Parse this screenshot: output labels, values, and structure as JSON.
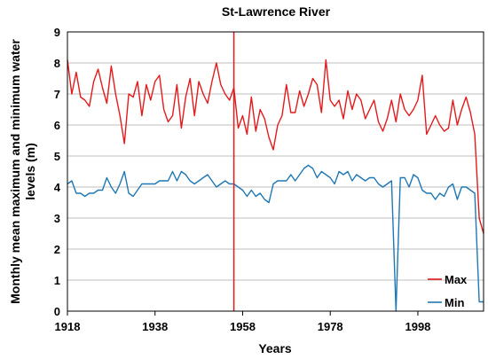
{
  "chart_data": {
    "type": "line",
    "title": "St-Lawrence River",
    "xlabel": "Years",
    "ylabel": "Monthly mean maximum and minimum water levels (m)",
    "xlim": [
      1918,
      2013
    ],
    "ylim": [
      0,
      9
    ],
    "xticks": [
      1918,
      1938,
      1958,
      1978,
      1998
    ],
    "yticks": [
      0,
      1,
      2,
      3,
      4,
      5,
      6,
      7,
      8,
      9
    ],
    "grid": "horizontal",
    "legend_position": "bottom-right",
    "vertical_marker_year": 1956,
    "series": [
      {
        "name": "Max",
        "color": "#e41a1c",
        "x": [
          1918,
          1919,
          1920,
          1921,
          1922,
          1923,
          1924,
          1925,
          1926,
          1927,
          1928,
          1929,
          1930,
          1931,
          1932,
          1933,
          1934,
          1935,
          1936,
          1937,
          1938,
          1939,
          1940,
          1941,
          1942,
          1943,
          1944,
          1945,
          1946,
          1947,
          1948,
          1949,
          1950,
          1951,
          1952,
          1953,
          1954,
          1955,
          1956,
          1957,
          1958,
          1959,
          1960,
          1961,
          1962,
          1963,
          1964,
          1965,
          1966,
          1967,
          1968,
          1969,
          1970,
          1971,
          1972,
          1973,
          1974,
          1975,
          1976,
          1977,
          1978,
          1979,
          1980,
          1981,
          1982,
          1983,
          1984,
          1985,
          1986,
          1987,
          1988,
          1989,
          1990,
          1991,
          1992,
          1993,
          1994,
          1995,
          1996,
          1997,
          1998,
          1999,
          2000,
          2001,
          2002,
          2003,
          2004,
          2005,
          2006,
          2007,
          2008,
          2009,
          2010,
          2011,
          2012,
          2013
        ],
        "values": [
          8.1,
          7.0,
          7.7,
          6.9,
          6.8,
          6.6,
          7.4,
          7.8,
          7.2,
          6.7,
          7.9,
          7.0,
          6.3,
          5.4,
          7.0,
          6.9,
          7.4,
          6.3,
          7.3,
          6.8,
          7.4,
          7.6,
          6.5,
          6.1,
          6.3,
          7.3,
          5.9,
          6.9,
          7.5,
          6.3,
          7.4,
          7.0,
          6.7,
          7.4,
          8.0,
          7.3,
          7.0,
          6.8,
          7.2,
          5.9,
          6.3,
          5.7,
          6.9,
          5.8,
          6.5,
          6.2,
          5.6,
          5.2,
          6.0,
          6.3,
          7.3,
          6.4,
          6.4,
          7.1,
          6.6,
          7.0,
          7.5,
          7.3,
          6.4,
          8.1,
          6.8,
          6.6,
          6.8,
          6.2,
          7.1,
          6.5,
          7.0,
          6.8,
          6.2,
          6.5,
          6.8,
          6.1,
          5.8,
          6.2,
          6.8,
          6.1,
          7.0,
          6.5,
          6.3,
          6.5,
          6.8,
          7.6,
          5.7,
          6.0,
          6.3,
          6.0,
          5.8,
          5.9,
          6.8,
          6.0,
          6.5,
          6.9,
          6.4,
          5.7,
          3.0,
          2.5
        ]
      },
      {
        "name": "Min",
        "color": "#1f78b4",
        "x": [
          1918,
          1919,
          1920,
          1921,
          1922,
          1923,
          1924,
          1925,
          1926,
          1927,
          1928,
          1929,
          1930,
          1931,
          1932,
          1933,
          1934,
          1935,
          1936,
          1937,
          1938,
          1939,
          1940,
          1941,
          1942,
          1943,
          1944,
          1945,
          1946,
          1947,
          1948,
          1949,
          1950,
          1951,
          1952,
          1953,
          1954,
          1955,
          1956,
          1957,
          1958,
          1959,
          1960,
          1961,
          1962,
          1963,
          1964,
          1965,
          1966,
          1967,
          1968,
          1969,
          1970,
          1971,
          1972,
          1973,
          1974,
          1975,
          1976,
          1977,
          1978,
          1979,
          1980,
          1981,
          1982,
          1983,
          1984,
          1985,
          1986,
          1987,
          1988,
          1989,
          1990,
          1991,
          1992,
          1993,
          1994,
          1995,
          1996,
          1997,
          1998,
          1999,
          2000,
          2001,
          2002,
          2003,
          2004,
          2005,
          2006,
          2007,
          2008,
          2009,
          2010,
          2011,
          2012,
          2013
        ],
        "values": [
          4.1,
          4.2,
          3.8,
          3.8,
          3.7,
          3.8,
          3.8,
          3.9,
          3.9,
          4.3,
          4.0,
          3.8,
          4.1,
          4.5,
          3.8,
          3.7,
          3.9,
          4.1,
          4.1,
          4.1,
          4.1,
          4.2,
          4.2,
          4.2,
          4.5,
          4.2,
          4.5,
          4.4,
          4.2,
          4.1,
          4.2,
          4.3,
          4.4,
          4.2,
          4.0,
          4.1,
          4.2,
          4.1,
          4.1,
          4.0,
          3.9,
          3.7,
          3.9,
          3.7,
          3.8,
          3.6,
          3.5,
          4.1,
          4.2,
          4.2,
          4.2,
          4.4,
          4.2,
          4.4,
          4.6,
          4.7,
          4.6,
          4.3,
          4.5,
          4.4,
          4.3,
          4.1,
          4.5,
          4.4,
          4.5,
          4.2,
          4.4,
          4.3,
          4.2,
          4.3,
          4.3,
          4.1,
          4.0,
          4.1,
          4.2,
          0.0,
          4.3,
          4.3,
          4.0,
          4.4,
          4.3,
          3.9,
          3.8,
          3.8,
          3.6,
          3.8,
          3.7,
          4.0,
          4.1,
          3.6,
          4.0,
          4.0,
          3.9,
          3.8,
          0.3,
          0.3
        ]
      }
    ]
  }
}
